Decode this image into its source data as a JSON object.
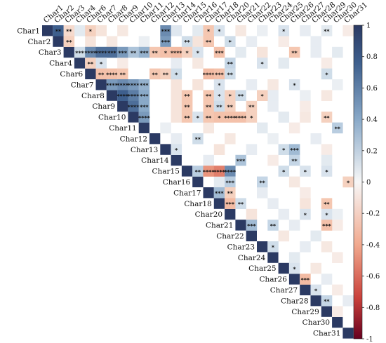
{
  "chart_data": {
    "type": "heatmap",
    "variables": [
      "Char1",
      "Char2",
      "Char3",
      "Char4",
      "Char6",
      "Char7",
      "Char8",
      "Char9",
      "Char10",
      "Char11",
      "Char12",
      "Char13",
      "Char14",
      "Char15",
      "Char16",
      "Char17",
      "Char18",
      "Char20",
      "Char21",
      "Char22",
      "Char23",
      "Char24",
      "Char25",
      "Char26",
      "Char27",
      "Char28",
      "Char29",
      "Char30",
      "Char31"
    ],
    "cells": [
      {
        "r": 0,
        "c": 1,
        "v": 0.75,
        "s": "**"
      },
      {
        "r": 0,
        "c": 2,
        "v": -0.15,
        "s": "**"
      },
      {
        "r": 0,
        "c": 4,
        "v": -0.2,
        "s": "*"
      },
      {
        "r": 0,
        "c": 11,
        "v": 0.6,
        "s": "***"
      },
      {
        "r": 0,
        "c": 15,
        "v": -0.25,
        "s": "*"
      },
      {
        "r": 0,
        "c": 16,
        "v": 0.15,
        "s": "*"
      },
      {
        "r": 0,
        "c": 22,
        "v": 0.15,
        "s": "*"
      },
      {
        "r": 0,
        "c": 26,
        "v": 0.1,
        "s": "**"
      },
      {
        "r": 1,
        "c": 2,
        "v": -0.2,
        "s": "**"
      },
      {
        "r": 1,
        "c": 11,
        "v": 0.55,
        "s": "***"
      },
      {
        "r": 1,
        "c": 13,
        "v": 0.2,
        "s": "**"
      },
      {
        "r": 1,
        "c": 15,
        "v": -0.25,
        "s": "**"
      },
      {
        "r": 1,
        "c": 17,
        "v": 0.2,
        "s": "*"
      },
      {
        "r": 2,
        "c": 3,
        "v": 0.2,
        "s": "***"
      },
      {
        "r": 2,
        "c": 4,
        "v": 0.6,
        "s": "****"
      },
      {
        "r": 2,
        "c": 5,
        "v": 0.7,
        "s": "****"
      },
      {
        "r": 2,
        "c": 6,
        "v": 0.7,
        "s": "***"
      },
      {
        "r": 2,
        "c": 7,
        "v": 0.55,
        "s": "***"
      },
      {
        "r": 2,
        "c": 8,
        "v": 0.35,
        "s": "**"
      },
      {
        "r": 2,
        "c": 9,
        "v": 0.45,
        "s": "***"
      },
      {
        "r": 2,
        "c": 10,
        "v": -0.25,
        "s": "**"
      },
      {
        "r": 2,
        "c": 11,
        "v": -0.3,
        "s": "*"
      },
      {
        "r": 2,
        "c": 12,
        "v": -0.35,
        "s": "****"
      },
      {
        "r": 2,
        "c": 13,
        "v": -0.2,
        "s": "*"
      },
      {
        "r": 2,
        "c": 14,
        "v": 0.15,
        "s": "*"
      },
      {
        "r": 2,
        "c": 16,
        "v": -0.3,
        "s": "***"
      },
      {
        "r": 2,
        "c": 23,
        "v": -0.25,
        "s": "**"
      },
      {
        "r": 3,
        "c": 4,
        "v": -0.2,
        "s": "**"
      },
      {
        "r": 3,
        "c": 5,
        "v": 0.15,
        "s": "*"
      },
      {
        "r": 3,
        "c": 17,
        "v": 0.25,
        "s": "**"
      },
      {
        "r": 3,
        "c": 20,
        "v": 0.15,
        "s": "*"
      },
      {
        "r": 4,
        "c": 5,
        "v": -0.3,
        "s": "**"
      },
      {
        "r": 4,
        "c": 6,
        "v": -0.3,
        "s": "****"
      },
      {
        "r": 4,
        "c": 7,
        "v": -0.25,
        "s": "**"
      },
      {
        "r": 4,
        "c": 10,
        "v": -0.25,
        "s": "**"
      },
      {
        "r": 4,
        "c": 11,
        "v": -0.2,
        "s": "**"
      },
      {
        "r": 4,
        "c": 12,
        "v": 0.2,
        "s": "*"
      },
      {
        "r": 4,
        "c": 15,
        "v": -0.35,
        "s": "****"
      },
      {
        "r": 4,
        "c": 16,
        "v": -0.3,
        "s": "***"
      },
      {
        "r": 4,
        "c": 17,
        "v": 0.2,
        "s": "**"
      },
      {
        "r": 4,
        "c": 26,
        "v": 0.2,
        "s": "*"
      },
      {
        "r": 5,
        "c": 6,
        "v": 0.55,
        "s": "****"
      },
      {
        "r": 5,
        "c": 7,
        "v": 0.6,
        "s": "****"
      },
      {
        "r": 5,
        "c": 8,
        "v": 0.55,
        "s": "****"
      },
      {
        "r": 5,
        "c": 9,
        "v": 0.45,
        "s": "***"
      },
      {
        "r": 5,
        "c": 16,
        "v": 0.15,
        "s": "*"
      },
      {
        "r": 5,
        "c": 23,
        "v": 0.15,
        "s": "*"
      },
      {
        "r": 6,
        "c": 7,
        "v": 0.75,
        "s": "****"
      },
      {
        "r": 6,
        "c": 8,
        "v": 0.65,
        "s": "****"
      },
      {
        "r": 6,
        "c": 9,
        "v": 0.5,
        "s": "***"
      },
      {
        "r": 6,
        "c": 13,
        "v": -0.25,
        "s": "**"
      },
      {
        "r": 6,
        "c": 15,
        "v": -0.25,
        "s": "**"
      },
      {
        "r": 6,
        "c": 16,
        "v": 0.15,
        "s": "*"
      },
      {
        "r": 6,
        "c": 17,
        "v": -0.2,
        "s": "*"
      },
      {
        "r": 6,
        "c": 18,
        "v": 0.2,
        "s": "**"
      },
      {
        "r": 6,
        "c": 20,
        "v": -0.2,
        "s": "*"
      },
      {
        "r": 7,
        "c": 8,
        "v": 0.7,
        "s": "****"
      },
      {
        "r": 7,
        "c": 9,
        "v": 0.5,
        "s": "***"
      },
      {
        "r": 7,
        "c": 13,
        "v": -0.25,
        "s": "**"
      },
      {
        "r": 7,
        "c": 15,
        "v": -0.25,
        "s": "**"
      },
      {
        "r": 7,
        "c": 16,
        "v": 0.2,
        "s": "**"
      },
      {
        "r": 7,
        "c": 17,
        "v": -0.2,
        "s": "**"
      },
      {
        "r": 7,
        "c": 19,
        "v": -0.2,
        "s": "**"
      },
      {
        "r": 8,
        "c": 9,
        "v": 0.55,
        "s": "****"
      },
      {
        "r": 8,
        "c": 13,
        "v": -0.25,
        "s": "**"
      },
      {
        "r": 8,
        "c": 14,
        "v": 0.15,
        "s": "*"
      },
      {
        "r": 8,
        "c": 15,
        "v": -0.25,
        "s": "**"
      },
      {
        "r": 8,
        "c": 16,
        "v": -0.3,
        "s": "*"
      },
      {
        "r": 8,
        "c": 17,
        "v": -0.3,
        "s": "****"
      },
      {
        "r": 8,
        "c": 18,
        "v": -0.3,
        "s": "****"
      },
      {
        "r": 8,
        "c": 19,
        "v": -0.2,
        "s": "*"
      },
      {
        "r": 8,
        "c": 26,
        "v": -0.2,
        "s": "**"
      },
      {
        "r": 9,
        "c": 27,
        "v": 0.3,
        "s": "**"
      },
      {
        "r": 10,
        "c": 14,
        "v": 0.2,
        "s": "**"
      },
      {
        "r": 11,
        "c": 12,
        "v": 0.15,
        "s": "*"
      },
      {
        "r": 11,
        "c": 22,
        "v": 0.2,
        "s": "*"
      },
      {
        "r": 11,
        "c": 23,
        "v": 0.4,
        "s": "***"
      },
      {
        "r": 12,
        "c": 18,
        "v": 0.35,
        "s": "***"
      },
      {
        "r": 12,
        "c": 23,
        "v": 0.25,
        "s": "**"
      },
      {
        "r": 13,
        "c": 14,
        "v": 0.3,
        "s": "**"
      },
      {
        "r": 13,
        "c": 15,
        "v": -0.55,
        "s": "****"
      },
      {
        "r": 13,
        "c": 16,
        "v": -0.6,
        "s": "****"
      },
      {
        "r": 13,
        "c": 17,
        "v": 0.6,
        "s": "****"
      },
      {
        "r": 13,
        "c": 22,
        "v": 0.2,
        "s": "*"
      },
      {
        "r": 13,
        "c": 24,
        "v": 0.15,
        "s": "*"
      },
      {
        "r": 13,
        "c": 26,
        "v": 0.15,
        "s": "*"
      },
      {
        "r": 14,
        "c": 17,
        "v": 0.3,
        "s": "***"
      },
      {
        "r": 14,
        "c": 20,
        "v": 0.25,
        "s": "**"
      },
      {
        "r": 14,
        "c": 28,
        "v": -0.2,
        "s": "*"
      },
      {
        "r": 15,
        "c": 16,
        "v": 0.4,
        "s": "***"
      },
      {
        "r": 15,
        "c": 17,
        "v": -0.2,
        "s": "**"
      },
      {
        "r": 16,
        "c": 17,
        "v": -0.35,
        "s": "***"
      },
      {
        "r": 16,
        "c": 18,
        "v": 0.2,
        "s": "**"
      },
      {
        "r": 16,
        "c": 26,
        "v": -0.25,
        "s": "**"
      },
      {
        "r": 17,
        "c": 24,
        "v": 0.15,
        "s": "*"
      },
      {
        "r": 17,
        "c": 26,
        "v": 0.15,
        "s": "*"
      },
      {
        "r": 18,
        "c": 19,
        "v": 0.4,
        "s": "***"
      },
      {
        "r": 18,
        "c": 21,
        "v": 0.25,
        "s": "**"
      },
      {
        "r": 18,
        "c": 26,
        "v": -0.3,
        "s": "***"
      },
      {
        "r": 20,
        "c": 21,
        "v": 0.2,
        "s": "*"
      },
      {
        "r": 22,
        "c": 23,
        "v": 0.15,
        "s": "*"
      },
      {
        "r": 23,
        "c": 24,
        "v": -0.35,
        "s": "***"
      },
      {
        "r": 24,
        "c": 25,
        "v": 0.15,
        "s": "*"
      },
      {
        "r": 25,
        "c": 26,
        "v": 0.25,
        "s": "**"
      }
    ],
    "background_cells": [
      {
        "r": 0,
        "c": 3,
        "v": 0.1
      },
      {
        "r": 0,
        "c": 5,
        "v": -0.1
      },
      {
        "r": 0,
        "c": 7,
        "v": -0.08
      },
      {
        "r": 0,
        "c": 12,
        "v": 0.12
      },
      {
        "r": 0,
        "c": 14,
        "v": 0.1
      },
      {
        "r": 0,
        "c": 18,
        "v": -0.08
      },
      {
        "r": 0,
        "c": 20,
        "v": 0.06
      },
      {
        "r": 0,
        "c": 24,
        "v": 0.08
      },
      {
        "r": 0,
        "c": 28,
        "v": -0.06
      },
      {
        "r": 1,
        "c": 4,
        "v": -0.1
      },
      {
        "r": 1,
        "c": 6,
        "v": -0.08
      },
      {
        "r": 1,
        "c": 9,
        "v": 0.06
      },
      {
        "r": 1,
        "c": 14,
        "v": -0.1
      },
      {
        "r": 1,
        "c": 19,
        "v": 0.08
      },
      {
        "r": 1,
        "c": 22,
        "v": -0.06
      },
      {
        "r": 1,
        "c": 25,
        "v": 0.08
      },
      {
        "r": 2,
        "c": 18,
        "v": 0.1
      },
      {
        "r": 2,
        "c": 20,
        "v": -0.1
      },
      {
        "r": 2,
        "c": 25,
        "v": 0.08
      },
      {
        "r": 2,
        "c": 27,
        "v": 0.1
      },
      {
        "r": 3,
        "c": 7,
        "v": -0.06
      },
      {
        "r": 3,
        "c": 12,
        "v": 0.08
      },
      {
        "r": 3,
        "c": 14,
        "v": -0.08
      },
      {
        "r": 3,
        "c": 22,
        "v": 0.1
      },
      {
        "r": 3,
        "c": 26,
        "v": -0.06
      },
      {
        "r": 5,
        "c": 12,
        "v": -0.1
      },
      {
        "r": 5,
        "c": 14,
        "v": -0.1
      },
      {
        "r": 5,
        "c": 19,
        "v": 0.08
      },
      {
        "r": 5,
        "c": 21,
        "v": -0.08
      },
      {
        "r": 5,
        "c": 27,
        "v": 0.06
      },
      {
        "r": 6,
        "c": 12,
        "v": -0.1
      },
      {
        "r": 6,
        "c": 21,
        "v": 0.08
      },
      {
        "r": 6,
        "c": 24,
        "v": 0.06
      },
      {
        "r": 6,
        "c": 26,
        "v": -0.08
      },
      {
        "r": 7,
        "c": 12,
        "v": -0.1
      },
      {
        "r": 7,
        "c": 21,
        "v": 0.08
      },
      {
        "r": 7,
        "c": 24,
        "v": -0.06
      },
      {
        "r": 8,
        "c": 12,
        "v": -0.1
      },
      {
        "r": 8,
        "c": 22,
        "v": 0.1
      },
      {
        "r": 8,
        "c": 24,
        "v": -0.08
      },
      {
        "r": 9,
        "c": 11,
        "v": 0.06
      },
      {
        "r": 9,
        "c": 15,
        "v": -0.08
      },
      {
        "r": 9,
        "c": 20,
        "v": 0.1
      },
      {
        "r": 9,
        "c": 23,
        "v": -0.06
      },
      {
        "r": 10,
        "c": 12,
        "v": 0.08
      },
      {
        "r": 10,
        "c": 17,
        "v": -0.08
      },
      {
        "r": 10,
        "c": 21,
        "v": 0.06
      },
      {
        "r": 10,
        "c": 25,
        "v": 0.08
      },
      {
        "r": 11,
        "c": 16,
        "v": -0.1
      },
      {
        "r": 11,
        "c": 19,
        "v": 0.08
      },
      {
        "r": 11,
        "c": 26,
        "v": -0.06
      },
      {
        "r": 12,
        "c": 15,
        "v": 0.08
      },
      {
        "r": 12,
        "c": 21,
        "v": -0.06
      },
      {
        "r": 12,
        "c": 26,
        "v": 0.1
      },
      {
        "r": 14,
        "c": 16,
        "v": 0.1
      },
      {
        "r": 14,
        "c": 23,
        "v": -0.08
      },
      {
        "r": 15,
        "c": 20,
        "v": 0.08
      },
      {
        "r": 15,
        "c": 24,
        "v": -0.06
      },
      {
        "r": 16,
        "c": 21,
        "v": 0.08
      },
      {
        "r": 16,
        "c": 24,
        "v": -0.1
      },
      {
        "r": 17,
        "c": 19,
        "v": -0.1
      },
      {
        "r": 17,
        "c": 22,
        "v": 0.08
      },
      {
        "r": 17,
        "c": 27,
        "v": 0.06
      },
      {
        "r": 18,
        "c": 23,
        "v": 0.08
      },
      {
        "r": 18,
        "c": 27,
        "v": -0.06
      },
      {
        "r": 19,
        "c": 22,
        "v": -0.08
      },
      {
        "r": 19,
        "c": 25,
        "v": 0.1
      },
      {
        "r": 20,
        "c": 24,
        "v": 0.08
      },
      {
        "r": 20,
        "c": 26,
        "v": -0.08
      },
      {
        "r": 21,
        "c": 23,
        "v": 0.1
      },
      {
        "r": 21,
        "c": 27,
        "v": -0.06
      },
      {
        "r": 22,
        "c": 25,
        "v": -0.08
      },
      {
        "r": 23,
        "c": 26,
        "v": 0.08
      },
      {
        "r": 24,
        "c": 27,
        "v": -0.06
      },
      {
        "r": 25,
        "c": 28,
        "v": 0.08
      },
      {
        "r": 26,
        "c": 27,
        "v": -0.06
      }
    ],
    "colorbar": {
      "min": -1,
      "max": 1,
      "ticks": [
        1,
        0.8,
        0.6,
        0.4,
        0.2,
        0,
        -0.2,
        -0.4,
        -0.6,
        -0.8,
        -1
      ],
      "colors": {
        "positive": "#2b3a63",
        "neutral": "#f7f7f7",
        "negative": "#67001f"
      }
    },
    "grid": false,
    "legend": "right"
  }
}
